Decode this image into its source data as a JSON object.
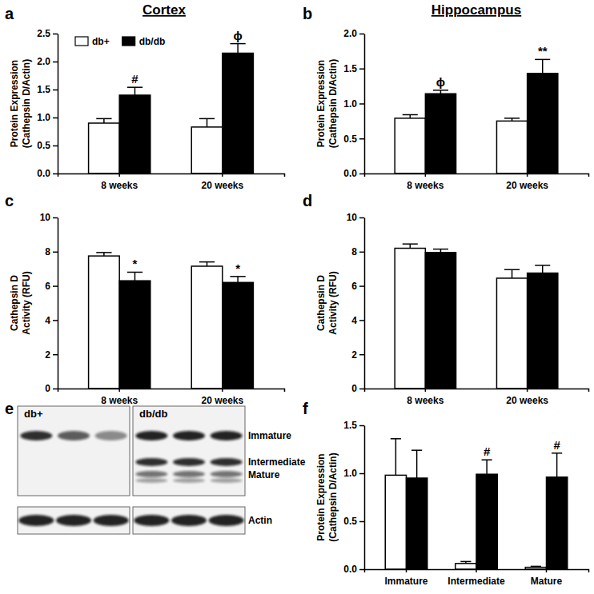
{
  "column_titles": [
    "Cortex",
    "Hippocampus"
  ],
  "chart_data": [
    {
      "panel_label": "a",
      "type": "bar",
      "ylabel": [
        "Protein Expression",
        "(Cathepsin D/Actin)"
      ],
      "categories": [
        "8 weeks",
        "20 weeks"
      ],
      "ylim": [
        0,
        2.5
      ],
      "yticks": [
        {
          "value": 0,
          "label": "0.0"
        },
        0.5,
        {
          "value": 1,
          "label": "1.0"
        },
        1.5,
        {
          "value": 2,
          "label": "2.0"
        },
        2.5
      ],
      "legend": "top-left",
      "series": [
        {
          "name": "db+",
          "color": "#ffffff",
          "values": [
            0.9,
            0.83
          ],
          "errors": [
            0.08,
            0.15
          ],
          "annotations": [
            null,
            null
          ]
        },
        {
          "name": "db/db",
          "color": "#000000",
          "values": [
            1.4,
            2.15
          ],
          "errors": [
            0.14,
            0.17
          ],
          "annotations": [
            "#",
            "ϕ"
          ]
        }
      ]
    },
    {
      "panel_label": "b",
      "type": "bar",
      "ylabel": [
        "Protein Expression",
        "(Cathepsin D/Actin)"
      ],
      "categories": [
        "8 weeks",
        "20 weeks"
      ],
      "ylim": [
        0,
        2
      ],
      "yticks": [
        {
          "value": 0,
          "label": "0.0"
        },
        0.5,
        {
          "value": 1,
          "label": "1.0"
        },
        1.5,
        {
          "value": 2,
          "label": "2.0"
        }
      ],
      "series": [
        {
          "color": "#ffffff",
          "values": [
            0.79,
            0.75
          ],
          "errors": [
            0.05,
            0.04
          ],
          "annotations": [
            null,
            null
          ]
        },
        {
          "color": "#000000",
          "values": [
            1.14,
            1.43
          ],
          "errors": [
            0.05,
            0.2
          ],
          "annotations": [
            "ϕ",
            "**"
          ]
        }
      ]
    },
    {
      "panel_label": "c",
      "type": "bar",
      "ylabel": [
        "Cathepsin D",
        "Activity (RFU)"
      ],
      "categories": [
        "8 weeks",
        "20 weeks"
      ],
      "ylim": [
        0,
        10
      ],
      "yticks": [
        0,
        2,
        4,
        6,
        8,
        10
      ],
      "series": [
        {
          "color": "#ffffff",
          "values": [
            7.75,
            7.15
          ],
          "errors": [
            0.2,
            0.25
          ],
          "annotations": [
            null,
            null
          ]
        },
        {
          "color": "#000000",
          "values": [
            6.3,
            6.2
          ],
          "errors": [
            0.5,
            0.35
          ],
          "annotations": [
            "*",
            "*"
          ]
        }
      ]
    },
    {
      "panel_label": "d",
      "type": "bar",
      "ylabel": [
        "Cathepsin D",
        "Activity (RFU)"
      ],
      "categories": [
        "8 weeks",
        "20 weeks"
      ],
      "ylim": [
        0,
        10
      ],
      "yticks": [
        0,
        2,
        4,
        6,
        8,
        10
      ],
      "series": [
        {
          "color": "#ffffff",
          "values": [
            8.2,
            6.45
          ],
          "errors": [
            0.25,
            0.5
          ],
          "annotations": [
            null,
            null
          ]
        },
        {
          "color": "#000000",
          "values": [
            7.95,
            6.75
          ],
          "errors": [
            0.2,
            0.45
          ],
          "annotations": [
            null,
            null
          ]
        }
      ]
    },
    {
      "panel_label": "f",
      "type": "bar",
      "ylabel": [
        "Protein Expression",
        "(Cathepsin D/Actin)"
      ],
      "categories": [
        "Immature",
        "Intermediate",
        "Mature"
      ],
      "ylim": [
        0,
        1.5
      ],
      "yticks": [
        {
          "value": 0,
          "label": "0.0"
        },
        0.5,
        {
          "value": 1,
          "label": "1.0"
        },
        1.5
      ],
      "series": [
        {
          "color": "#ffffff",
          "values": [
            0.98,
            0.06,
            0.02
          ],
          "errors": [
            0.38,
            0.02,
            0.01
          ],
          "annotations": [
            null,
            null,
            null
          ]
        },
        {
          "color": "#000000",
          "values": [
            0.95,
            0.99,
            0.96
          ],
          "errors": [
            0.29,
            0.15,
            0.25
          ],
          "annotations": [
            null,
            "#",
            "#"
          ]
        }
      ]
    }
  ],
  "blot": {
    "panel_label": "e",
    "groups": [
      "db+",
      "db/db"
    ],
    "bands": [
      "Immature",
      "Intermediate",
      "Mature"
    ],
    "loading_control": "Actin"
  }
}
